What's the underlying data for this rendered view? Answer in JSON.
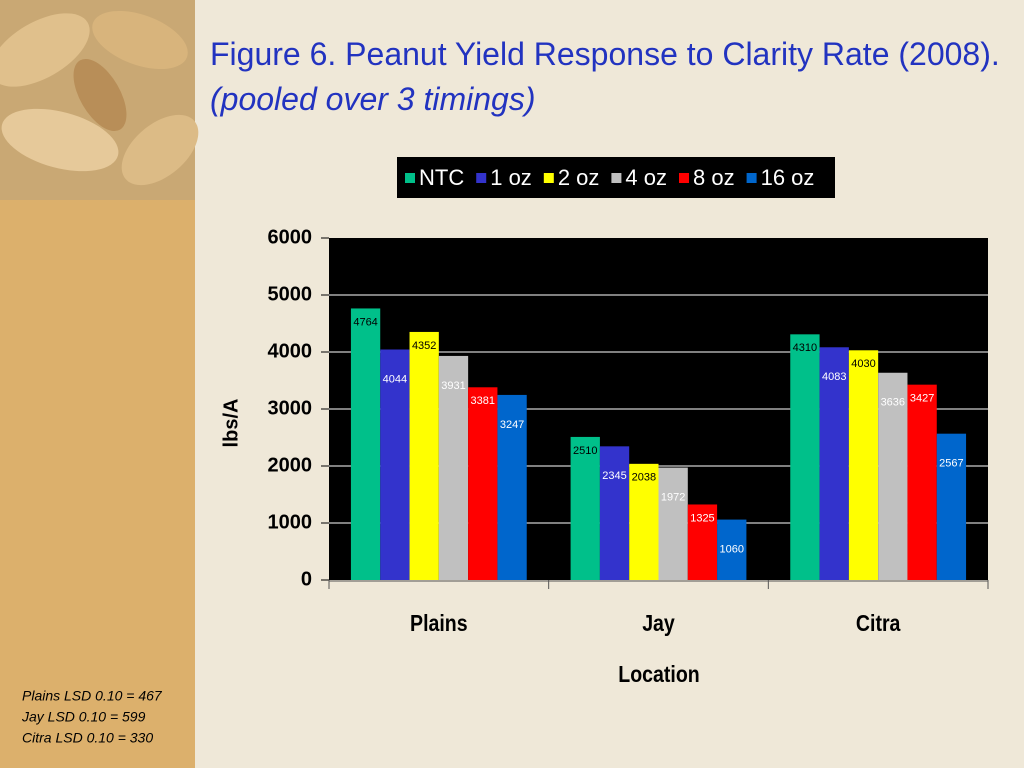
{
  "chart_data": {
    "type": "bar",
    "title": "Figure 6.  Peanut Yield Response to Clarity Rate (2008).",
    "subtitle": "(pooled over 3 timings)",
    "x_label": "Location",
    "y_label": "lbs/A",
    "categories": [
      "Plains",
      "Jay",
      "Citra"
    ],
    "series": [
      {
        "name": "NTC",
        "color": "#00c08a",
        "values": [
          4764,
          2510,
          4310
        ]
      },
      {
        "name": "1 oz",
        "color": "#3333cc",
        "values": [
          4044,
          2345,
          4083
        ]
      },
      {
        "name": "2 oz",
        "color": "#ffff00",
        "values": [
          4352,
          2038,
          4030
        ]
      },
      {
        "name": "4 oz",
        "color": "#c0c0c0",
        "values": [
          3931,
          1972,
          3636
        ]
      },
      {
        "name": "8 oz",
        "color": "#ff0000",
        "values": [
          3381,
          1325,
          3427
        ]
      },
      {
        "name": "16 oz",
        "color": "#0066cc",
        "values": [
          3247,
          1060,
          2567
        ]
      }
    ],
    "ylim": [
      0,
      6000
    ],
    "yticks": [
      0,
      1000,
      2000,
      3000,
      4000,
      5000,
      6000
    ],
    "grid": true,
    "legend": "top",
    "notes": [
      "Plains LSD 0.10 = 467",
      "Jay LSD 0.10 = 599",
      "Citra LSD 0.10 = 330"
    ]
  }
}
